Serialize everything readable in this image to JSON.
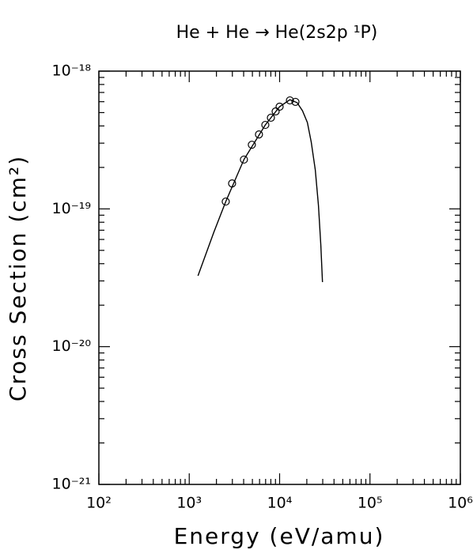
{
  "chart_data": {
    "type": "line",
    "title": "He + He → He(2s2p ¹P)",
    "xlabel": "Energy (eV/amu)",
    "ylabel": "Cross Section (cm²)",
    "xscale": "log",
    "yscale": "log",
    "xlim": [
      100,
      1000000
    ],
    "ylim": [
      1e-21,
      1e-18
    ],
    "xticks": [
      {
        "value": 100,
        "label": "10²"
      },
      {
        "value": 1000,
        "label": "10³"
      },
      {
        "value": 10000,
        "label": "10⁴"
      },
      {
        "value": 100000,
        "label": "10⁵"
      },
      {
        "value": 1000000,
        "label": "10⁶"
      }
    ],
    "yticks": [
      {
        "value": 1e-21,
        "label": "10⁻²¹"
      },
      {
        "value": 1e-20,
        "label": "10⁻²⁰"
      },
      {
        "value": 1e-19,
        "label": "10⁻¹⁹"
      },
      {
        "value": 1e-18,
        "label": "10⁻¹⁸"
      }
    ],
    "series": [
      {
        "style": "line",
        "color": "#000000",
        "x": [
          1250,
          1870,
          2535,
          4030,
          6950,
          10000,
          13000,
          15600,
          17900,
          20300,
          22400,
          24800,
          26900,
          28600,
          29800
        ],
        "values": [
          3.27e-20,
          6.76e-20,
          1.13e-19,
          2.28e-19,
          4.07e-19,
          5.52e-19,
          6.2e-19,
          5.9e-19,
          5.16e-19,
          4.24e-19,
          3.05e-19,
          1.92e-19,
          1.06e-19,
          5.47e-20,
          2.94e-20
        ]
      },
      {
        "style": "markers",
        "color": "#000000",
        "x": [
          2535,
          2980,
          4030,
          4930,
          5910,
          6950,
          8010,
          9040,
          10000,
          13000,
          14970
        ],
        "values": [
          1.13e-19,
          1.53e-19,
          2.28e-19,
          2.92e-19,
          3.47e-19,
          4.07e-19,
          4.59e-19,
          5.1e-19,
          5.52e-19,
          6.13e-19,
          5.98e-19
        ]
      }
    ]
  }
}
